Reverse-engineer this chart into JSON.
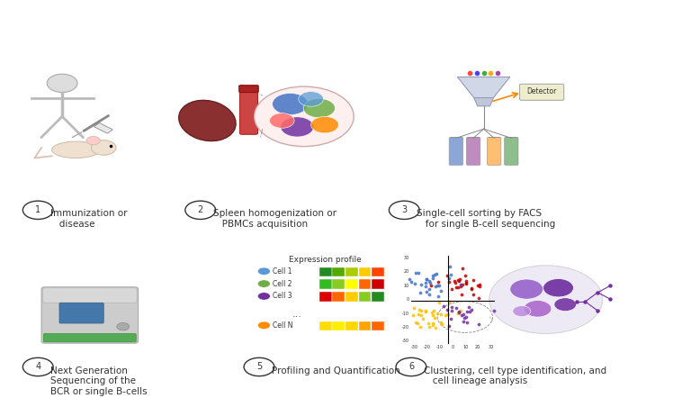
{
  "background_color": "#ffffff",
  "step_labels": [
    "1",
    "2",
    "3",
    "4",
    "5",
    "6"
  ],
  "step_texts": [
    "Immunization or\n   disease",
    "Spleen homogenization or\n   PBMCs acquisition",
    "Single-cell sorting by FACS\n   for single B-cell sequencing",
    "Next Generation\nSequencing of the\nBCR or single B-cells",
    "Profiling and Quantification",
    "Clustering, cell type identification, and\n   cell lineage analysis"
  ],
  "circle_color": "#555555",
  "text_color": "#333333",
  "label_fontsize": 7.5,
  "circle_fontsize": 7,
  "heatmap_colors": [
    "#228B22",
    "#32CD32",
    "#FFFF00",
    "#FFA500",
    "#FF0000"
  ],
  "cell_colors": [
    "#5B9BD5",
    "#70AD47",
    "#7030A0",
    "#FF8C00"
  ],
  "cell_names": [
    "Cell 1",
    "Cell 2",
    "Cell 3",
    "Cell N"
  ],
  "scatter_colors": {
    "blue": "#4472C4",
    "red": "#C00000",
    "yellow": "#FFC000",
    "purple": "#7030A0"
  }
}
